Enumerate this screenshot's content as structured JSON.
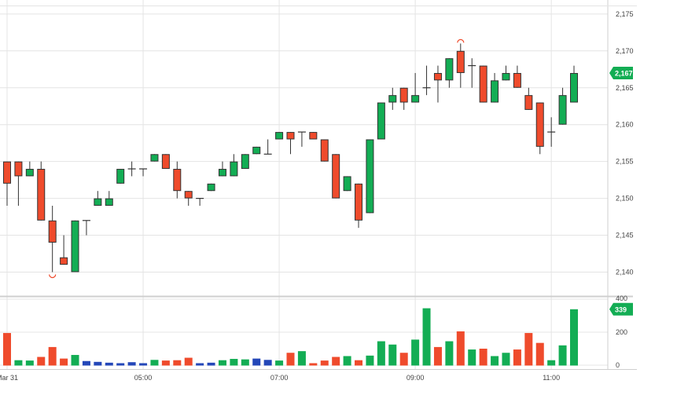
{
  "chart_data": {
    "type": "candlestick",
    "colors": {
      "up": "#13ad54",
      "down": "#ef4b2c",
      "neutral_volume": "#2447b8",
      "badge": "#13ad54",
      "marker": "#ef4b2c"
    },
    "price_axis": {
      "range": [
        2136.6,
        2177
      ],
      "ticks": [
        "2,140",
        "2,145",
        "2,150",
        "2,155",
        "2,160",
        "2,165",
        "2,170",
        "2,175"
      ],
      "last_price_label": "2,167",
      "last_price": 2167
    },
    "volume_axis": {
      "range": [
        0,
        430
      ],
      "ticks": [
        "0",
        "200",
        "400"
      ],
      "last_volume_label": "339",
      "last_volume": 339
    },
    "x_axis": {
      "labels": [
        {
          "text": "Mar 31",
          "index": 0
        },
        {
          "text": "05:00",
          "index": 12
        },
        {
          "text": "07:00",
          "index": 24
        },
        {
          "text": "09:00",
          "index": 36
        },
        {
          "text": "11:00",
          "index": 48
        }
      ]
    },
    "markers": [
      {
        "index": 4,
        "position": "low",
        "value": 2140
      },
      {
        "index": 40,
        "position": "high",
        "value": 2171
      }
    ],
    "candles": [
      {
        "o": 2155,
        "h": 2155,
        "l": 2149,
        "c": 2152,
        "v": 195,
        "vc": "down"
      },
      {
        "o": 2155,
        "h": 2155,
        "l": 2149,
        "c": 2153,
        "v": 30,
        "vc": "up"
      },
      {
        "o": 2153,
        "h": 2155,
        "l": 2153,
        "c": 2154,
        "v": 28,
        "vc": "up"
      },
      {
        "o": 2154,
        "h": 2155,
        "l": 2147,
        "c": 2147,
        "v": 50,
        "vc": "down"
      },
      {
        "o": 2147,
        "h": 2149,
        "l": 2140,
        "c": 2144,
        "v": 110,
        "vc": "down"
      },
      {
        "o": 2142,
        "h": 2145,
        "l": 2141,
        "c": 2141,
        "v": 40,
        "vc": "down"
      },
      {
        "o": 2140,
        "h": 2147,
        "l": 2140,
        "c": 2147,
        "v": 62,
        "vc": "up"
      },
      {
        "o": 2147,
        "h": 2147,
        "l": 2145,
        "c": 2147,
        "v": 25,
        "vc": "neutral"
      },
      {
        "o": 2149,
        "h": 2151,
        "l": 2149,
        "c": 2150,
        "v": 20,
        "vc": "neutral"
      },
      {
        "o": 2149,
        "h": 2151,
        "l": 2149,
        "c": 2150,
        "v": 15,
        "vc": "neutral"
      },
      {
        "o": 2152,
        "h": 2154,
        "l": 2152,
        "c": 2154,
        "v": 12,
        "vc": "neutral"
      },
      {
        "o": 2154,
        "h": 2155,
        "l": 2153,
        "c": 2154,
        "v": 18,
        "vc": "neutral"
      },
      {
        "o": 2154,
        "h": 2154,
        "l": 2153,
        "c": 2154,
        "v": 12,
        "vc": "neutral"
      },
      {
        "o": 2155,
        "h": 2156,
        "l": 2155,
        "c": 2156,
        "v": 32,
        "vc": "up"
      },
      {
        "o": 2156,
        "h": 2156,
        "l": 2154,
        "c": 2154,
        "v": 28,
        "vc": "down"
      },
      {
        "o": 2154,
        "h": 2155,
        "l": 2150,
        "c": 2151,
        "v": 30,
        "vc": "down"
      },
      {
        "o": 2151,
        "h": 2151,
        "l": 2149,
        "c": 2150,
        "v": 45,
        "vc": "down"
      },
      {
        "o": 2150,
        "h": 2150,
        "l": 2149,
        "c": 2150,
        "v": 12,
        "vc": "neutral"
      },
      {
        "o": 2151,
        "h": 2152,
        "l": 2151,
        "c": 2152,
        "v": 15,
        "vc": "neutral"
      },
      {
        "o": 2153,
        "h": 2155,
        "l": 2153,
        "c": 2154,
        "v": 30,
        "vc": "up"
      },
      {
        "o": 2153,
        "h": 2156,
        "l": 2153,
        "c": 2155,
        "v": 38,
        "vc": "up"
      },
      {
        "o": 2154,
        "h": 2156,
        "l": 2154,
        "c": 2156,
        "v": 35,
        "vc": "up"
      },
      {
        "o": 2156,
        "h": 2157,
        "l": 2156,
        "c": 2157,
        "v": 40,
        "vc": "neutral"
      },
      {
        "o": 2156,
        "h": 2158,
        "l": 2156,
        "c": 2156,
        "v": 32,
        "vc": "neutral"
      },
      {
        "o": 2158,
        "h": 2159,
        "l": 2158,
        "c": 2159,
        "v": 28,
        "vc": "up"
      },
      {
        "o": 2159,
        "h": 2159,
        "l": 2156,
        "c": 2158,
        "v": 75,
        "vc": "down"
      },
      {
        "o": 2159,
        "h": 2159,
        "l": 2157,
        "c": 2159,
        "v": 85,
        "vc": "up"
      },
      {
        "o": 2159,
        "h": 2159,
        "l": 2158,
        "c": 2158,
        "v": 12,
        "vc": "down"
      },
      {
        "o": 2158,
        "h": 2158,
        "l": 2155,
        "c": 2155,
        "v": 28,
        "vc": "down"
      },
      {
        "o": 2156,
        "h": 2156,
        "l": 2150,
        "c": 2150,
        "v": 50,
        "vc": "down"
      },
      {
        "o": 2151,
        "h": 2153,
        "l": 2151,
        "c": 2153,
        "v": 55,
        "vc": "up"
      },
      {
        "o": 2152,
        "h": 2152,
        "l": 2146,
        "c": 2147,
        "v": 30,
        "vc": "down"
      },
      {
        "o": 2148,
        "h": 2158,
        "l": 2148,
        "c": 2158,
        "v": 58,
        "vc": "up"
      },
      {
        "o": 2158,
        "h": 2163,
        "l": 2158,
        "c": 2163,
        "v": 145,
        "vc": "up"
      },
      {
        "o": 2163,
        "h": 2165,
        "l": 2162,
        "c": 2164,
        "v": 125,
        "vc": "up"
      },
      {
        "o": 2165,
        "h": 2165,
        "l": 2162,
        "c": 2163,
        "v": 75,
        "vc": "down"
      },
      {
        "o": 2163,
        "h": 2167,
        "l": 2163,
        "c": 2164,
        "v": 155,
        "vc": "up"
      },
      {
        "o": 2165,
        "h": 2168,
        "l": 2164,
        "c": 2165,
        "v": 345,
        "vc": "up"
      },
      {
        "o": 2167,
        "h": 2168,
        "l": 2163,
        "c": 2166,
        "v": 110,
        "vc": "down"
      },
      {
        "o": 2166,
        "h": 2169,
        "l": 2165,
        "c": 2169,
        "v": 145,
        "vc": "up"
      },
      {
        "o": 2170,
        "h": 2171,
        "l": 2165,
        "c": 2167,
        "v": 205,
        "vc": "down"
      },
      {
        "o": 2168,
        "h": 2169,
        "l": 2165,
        "c": 2168,
        "v": 95,
        "vc": "up"
      },
      {
        "o": 2168,
        "h": 2168,
        "l": 2163,
        "c": 2163,
        "v": 100,
        "vc": "down"
      },
      {
        "o": 2163,
        "h": 2167,
        "l": 2163,
        "c": 2166,
        "v": 55,
        "vc": "up"
      },
      {
        "o": 2166,
        "h": 2168,
        "l": 2166,
        "c": 2167,
        "v": 75,
        "vc": "up"
      },
      {
        "o": 2167,
        "h": 2168,
        "l": 2165,
        "c": 2165,
        "v": 95,
        "vc": "down"
      },
      {
        "o": 2164,
        "h": 2165,
        "l": 2162,
        "c": 2162,
        "v": 195,
        "vc": "down"
      },
      {
        "o": 2163,
        "h": 2163,
        "l": 2156,
        "c": 2157,
        "v": 135,
        "vc": "down"
      },
      {
        "o": 2159,
        "h": 2161,
        "l": 2157,
        "c": 2159,
        "v": 30,
        "vc": "up"
      },
      {
        "o": 2160,
        "h": 2165,
        "l": 2160,
        "c": 2164,
        "v": 120,
        "vc": "up"
      },
      {
        "o": 2163,
        "h": 2168,
        "l": 2163,
        "c": 2167,
        "v": 339,
        "vc": "up"
      }
    ]
  }
}
